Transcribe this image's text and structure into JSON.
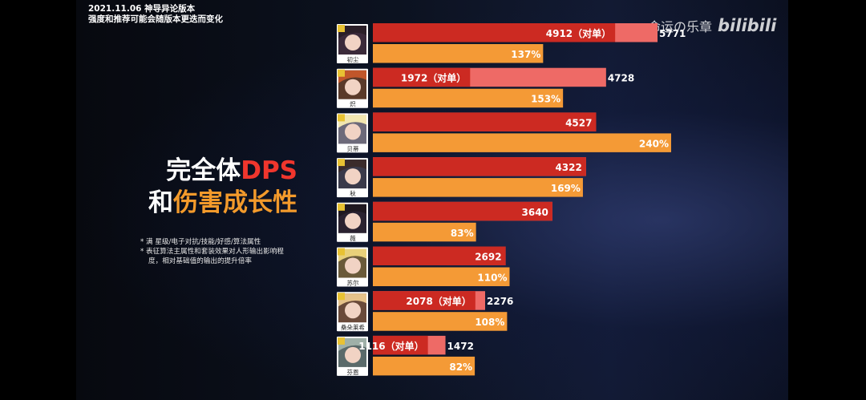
{
  "header": {
    "line1": "2021.11.06 神导异论版本",
    "line2": "强度和推荐可能会随版本更迭而变化"
  },
  "title": {
    "line1_white": "完全体",
    "line1_red": "DPS",
    "line2_white": "和",
    "line2_orange": "伤害成长性"
  },
  "notes": [
    "* 满 星级/电子对抗/技能/好感/算法属性",
    "* 表征算法主属性和套装效果对人形输出影响程",
    "度，相对基础值的输出的提升倍率"
  ],
  "watermark": {
    "text": "命运の乐章",
    "logo": "bilibili"
  },
  "colors": {
    "red": "#cc2a22",
    "pink": "#ee6a66",
    "orange": "#f49a36",
    "bg": "#0c1220"
  },
  "chart_data": {
    "type": "bar",
    "categories": [
      "初尘",
      "炽",
      "贝蒂",
      "秋",
      "薇",
      "苏尔",
      "桑朵莱希",
      "芬恩"
    ],
    "series": [
      {
        "values": [
          5771,
          4728,
          4527,
          4322,
          3640,
          2692,
          2276,
          1472
        ]
      },
      {
        "name": "对单",
        "values": [
          4912,
          1972,
          null,
          null,
          null,
          null,
          2078,
          1116
        ]
      },
      {
        "values": [
          137,
          153,
          240,
          169,
          83,
          110,
          108,
          82
        ],
        "unit": "%"
      }
    ],
    "dps_labels": [
      "5771",
      "4728",
      "4527",
      "4322",
      "3640",
      "2692",
      "2276",
      "1472"
    ],
    "single_labels": [
      "4912（对单）",
      "1972（对单）",
      "",
      "",
      "",
      "",
      "2078（对单）",
      "1116（对单）"
    ],
    "growth_labels": [
      "137%",
      "153%",
      "240%",
      "169%",
      "83%",
      "110%",
      "108%",
      "82%"
    ],
    "orientation": "horizontal"
  }
}
